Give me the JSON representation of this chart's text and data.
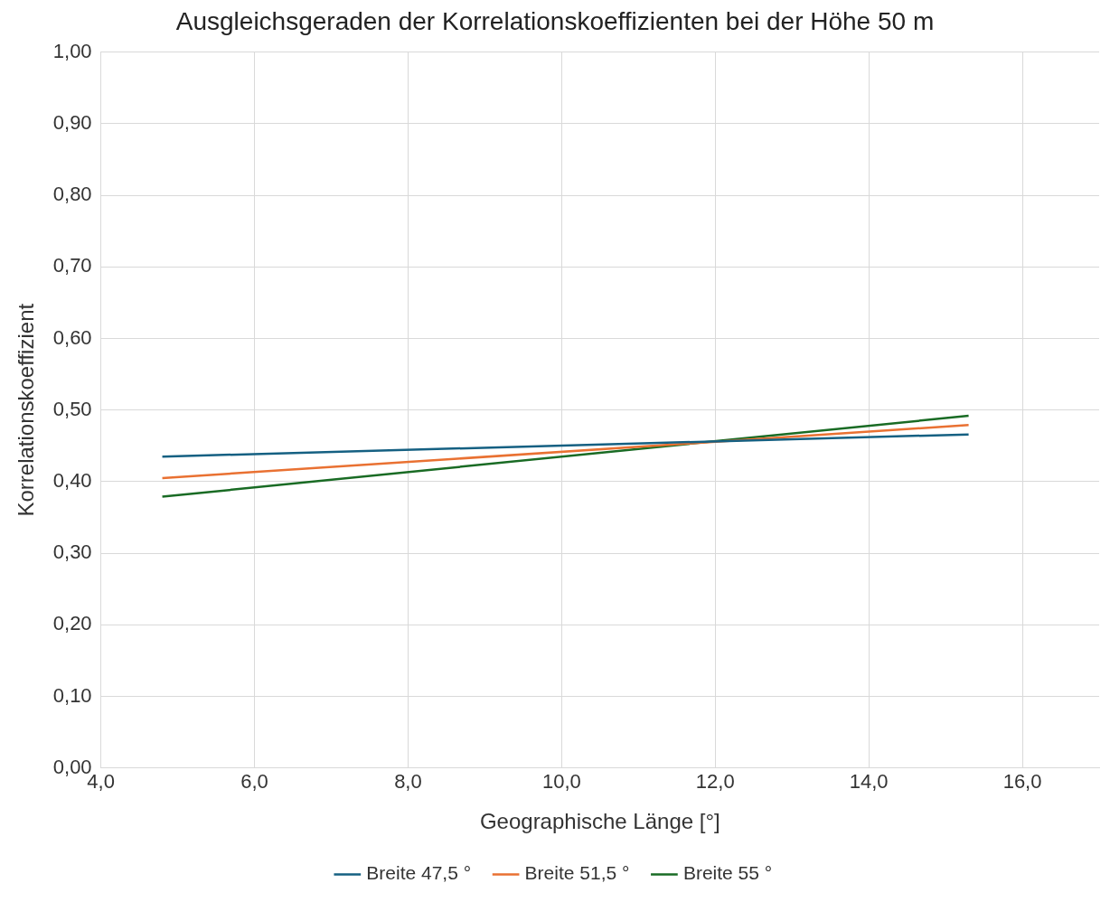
{
  "chart_data": {
    "type": "line",
    "title": "Ausgleichsgeraden der Korrelationskoeffizienten bei der Höhe 50 m",
    "xlabel": "Geographische Länge [°]",
    "ylabel": "Korrelationskoeffizient",
    "xlim": [
      4,
      17
    ],
    "xticks": [
      {
        "value": 4,
        "label": "4,0"
      },
      {
        "value": 6,
        "label": "6,0"
      },
      {
        "value": 8,
        "label": "8,0"
      },
      {
        "value": 10,
        "label": "10,0"
      },
      {
        "value": 12,
        "label": "12,0"
      },
      {
        "value": 14,
        "label": "14,0"
      },
      {
        "value": 16,
        "label": "16,0"
      }
    ],
    "ylim": [
      0,
      1
    ],
    "yticks": [
      {
        "value": 0,
        "label": "0,00"
      },
      {
        "value": 0.1,
        "label": "0,10"
      },
      {
        "value": 0.2,
        "label": "0,20"
      },
      {
        "value": 0.3,
        "label": "0,30"
      },
      {
        "value": 0.4,
        "label": "0,40"
      },
      {
        "value": 0.5,
        "label": "0,50"
      },
      {
        "value": 0.6,
        "label": "0,60"
      },
      {
        "value": 0.7,
        "label": "0,70"
      },
      {
        "value": 0.8,
        "label": "0,80"
      },
      {
        "value": 0.9,
        "label": "0,90"
      },
      {
        "value": 1,
        "label": "1,00"
      }
    ],
    "x": [
      4.8,
      15.3
    ],
    "series": [
      {
        "name": "Breite 47,5 °",
        "color": "#156082",
        "values": [
          0.435,
          0.466
        ]
      },
      {
        "name": "Breite 51,5 °",
        "color": "#e97132",
        "values": [
          0.405,
          0.479
        ]
      },
      {
        "name": "Breite 55 °",
        "color": "#196b24",
        "values": [
          0.379,
          0.492
        ]
      }
    ],
    "grid": true,
    "legend": "bottom",
    "marker": "none",
    "line_style": "solid"
  }
}
